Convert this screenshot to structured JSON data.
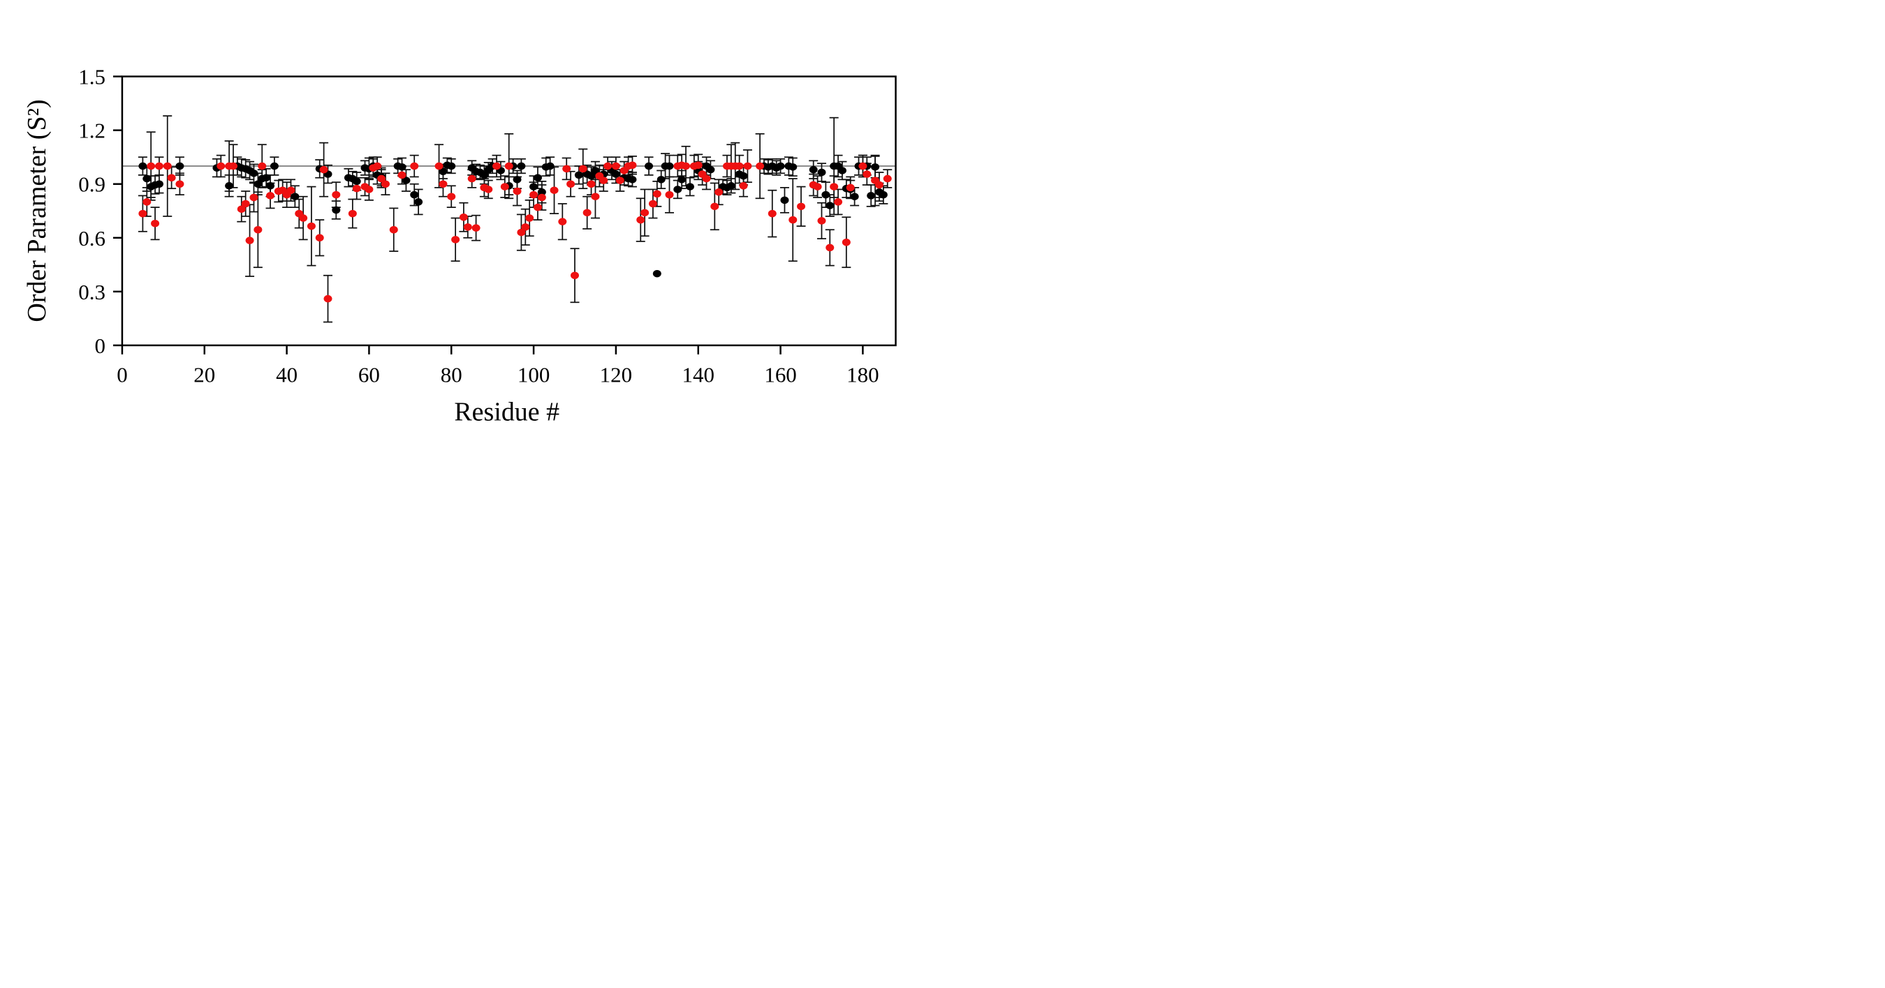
{
  "figure": {
    "background_color": "#ffffff",
    "frame_color": "#000000",
    "reference_line_color": "#8c8c8c",
    "error_bar_color": "#111111"
  },
  "chart_data": {
    "type": "scatter",
    "title": "",
    "xlabel": "Residue #",
    "ylabel": "Order Parameter (S²)",
    "xlim": [
      0,
      188
    ],
    "ylim": [
      0,
      1.5
    ],
    "x_tick_values": [
      0,
      20,
      40,
      60,
      80,
      100,
      120,
      140,
      160,
      180
    ],
    "x_tick_labels": [
      "0",
      "20",
      "40",
      "60",
      "80",
      "100",
      "120",
      "140",
      "160",
      "180"
    ],
    "y_tick_values": [
      0,
      0.3,
      0.6,
      0.9,
      1.2,
      1.5
    ],
    "y_tick_labels": [
      "0",
      "0.3",
      "0.6",
      "0.9",
      "1.2",
      "1.5"
    ],
    "grid": false,
    "legend_position": "none",
    "reference_line_y": 1.0,
    "series": [
      {
        "name": "black-series",
        "color": "#000000",
        "marker": "circle",
        "points": [
          [
            5,
            1.0,
            0.05
          ],
          [
            6,
            0.93,
            0.07
          ],
          [
            7,
            0.885,
            0.06
          ],
          [
            8,
            0.895,
            0.05
          ],
          [
            9,
            0.9,
            0.05
          ],
          [
            14,
            1.0,
            0.05
          ],
          [
            23,
            0.99,
            0.05
          ],
          [
            26,
            0.89,
            0.06
          ],
          [
            28,
            1.0,
            0.05
          ],
          [
            29,
            0.99,
            0.05
          ],
          [
            30,
            0.985,
            0.05
          ],
          [
            31,
            0.975,
            0.05
          ],
          [
            32,
            0.96,
            0.05
          ],
          [
            33,
            0.9,
            0.06
          ],
          [
            34,
            0.93,
            0.05
          ],
          [
            35,
            0.935,
            0.05
          ],
          [
            36,
            0.89,
            0.06
          ],
          [
            37,
            1.0,
            0.05
          ],
          [
            42,
            0.83,
            0.06
          ],
          [
            48,
            0.985,
            0.05
          ],
          [
            50,
            0.955,
            0.05
          ],
          [
            52,
            0.755,
            0.05
          ],
          [
            55,
            0.935,
            0.05
          ],
          [
            56,
            0.93,
            0.04
          ],
          [
            57,
            0.915,
            0.05
          ],
          [
            59,
            0.99,
            0.04
          ],
          [
            60,
            0.985,
            0.06
          ],
          [
            61,
            1.0,
            0.05
          ],
          [
            62,
            0.95,
            0.05
          ],
          [
            63,
            0.94,
            0.05
          ],
          [
            67,
            1.0,
            0.04
          ],
          [
            68,
            0.995,
            0.05
          ],
          [
            69,
            0.92,
            0.06
          ],
          [
            71,
            0.84,
            0.06
          ],
          [
            72,
            0.8,
            0.07
          ],
          [
            78,
            0.97,
            0.04
          ],
          [
            79,
            1.005,
            0.04
          ],
          [
            80,
            1.0,
            0.04
          ],
          [
            85,
            0.99,
            0.04
          ],
          [
            86,
            0.97,
            0.04
          ],
          [
            87,
            0.965,
            0.04
          ],
          [
            88,
            0.95,
            0.05
          ],
          [
            89,
            0.98,
            0.04
          ],
          [
            90,
            1.0,
            0.04
          ],
          [
            92,
            0.975,
            0.05
          ],
          [
            94,
            0.89,
            0.05
          ],
          [
            95,
            1.0,
            0.04
          ],
          [
            96,
            0.925,
            0.05
          ],
          [
            97,
            1.0,
            0.04
          ],
          [
            100,
            0.885,
            0.06
          ],
          [
            101,
            0.935,
            0.06
          ],
          [
            102,
            0.855,
            0.06
          ],
          [
            103,
            0.995,
            0.05
          ],
          [
            104,
            1.0,
            0.05
          ],
          [
            111,
            0.95,
            0.05
          ],
          [
            113,
            0.955,
            0.05
          ],
          [
            114,
            0.945,
            0.05
          ],
          [
            115,
            0.975,
            0.05
          ],
          [
            117,
            0.955,
            0.05
          ],
          [
            119,
            0.975,
            0.05
          ],
          [
            120,
            0.955,
            0.05
          ],
          [
            122,
            0.935,
            0.04
          ],
          [
            123,
            0.93,
            0.04
          ],
          [
            124,
            0.925,
            0.04
          ],
          [
            128,
            1.0,
            0.05
          ],
          [
            130,
            0.4,
            null
          ],
          [
            131,
            0.925,
            0.05
          ],
          [
            132,
            1.0,
            0.07
          ],
          [
            133,
            1.0,
            0.06
          ],
          [
            135,
            0.87,
            0.05
          ],
          [
            136,
            0.925,
            0.05
          ],
          [
            138,
            0.885,
            0.05
          ],
          [
            140,
            0.975,
            0.05
          ],
          [
            142,
            1.0,
            0.05
          ],
          [
            143,
            0.98,
            0.05
          ],
          [
            146,
            0.885,
            0.04
          ],
          [
            147,
            0.88,
            0.04
          ],
          [
            148,
            0.89,
            0.04
          ],
          [
            150,
            0.955,
            0.05
          ],
          [
            151,
            0.945,
            0.05
          ],
          [
            156,
            1.0,
            0.04
          ],
          [
            157,
            0.995,
            0.04
          ],
          [
            158,
            1.0,
            0.04
          ],
          [
            159,
            0.99,
            0.04
          ],
          [
            160,
            1.0,
            0.04
          ],
          [
            161,
            0.81,
            0.07
          ],
          [
            162,
            1.0,
            0.05
          ],
          [
            163,
            0.995,
            0.05
          ],
          [
            168,
            0.98,
            0.05
          ],
          [
            170,
            0.965,
            0.05
          ],
          [
            171,
            0.84,
            0.07
          ],
          [
            172,
            0.78,
            0.06
          ],
          [
            173,
            1.0,
            0.27
          ],
          [
            174,
            1.0,
            0.06
          ],
          [
            175,
            0.975,
            0.05
          ],
          [
            176,
            0.875,
            0.05
          ],
          [
            177,
            0.87,
            0.05
          ],
          [
            178,
            0.83,
            0.05
          ],
          [
            179,
            1.0,
            0.05
          ],
          [
            180,
            1.0,
            0.06
          ],
          [
            181,
            1.0,
            0.05
          ],
          [
            182,
            0.835,
            0.06
          ],
          [
            183,
            0.995,
            0.06
          ],
          [
            184,
            0.855,
            0.05
          ],
          [
            185,
            0.84,
            0.05
          ]
        ]
      },
      {
        "name": "red-series",
        "color": "#ee1111",
        "marker": "circle",
        "points": [
          [
            5,
            0.735,
            0.1
          ],
          [
            6,
            0.8,
            0.08
          ],
          [
            7,
            1.0,
            0.19
          ],
          [
            8,
            0.68,
            0.09
          ],
          [
            9,
            1.0,
            0.05
          ],
          [
            11,
            1.0,
            0.28
          ],
          [
            12,
            0.935,
            0.06
          ],
          [
            14,
            0.9,
            0.06
          ],
          [
            24,
            1.0,
            0.06
          ],
          [
            26,
            1.0,
            0.14
          ],
          [
            27,
            1.0,
            0.12
          ],
          [
            29,
            0.76,
            0.07
          ],
          [
            30,
            0.79,
            0.07
          ],
          [
            31,
            0.585,
            0.2
          ],
          [
            32,
            0.825,
            0.08
          ],
          [
            33,
            0.645,
            0.21
          ],
          [
            34,
            1.0,
            0.12
          ],
          [
            36,
            0.835,
            0.07
          ],
          [
            38,
            0.86,
            0.06
          ],
          [
            39,
            0.865,
            0.06
          ],
          [
            40,
            0.84,
            0.07
          ],
          [
            41,
            0.865,
            0.06
          ],
          [
            43,
            0.735,
            0.08
          ],
          [
            44,
            0.71,
            0.12
          ],
          [
            46,
            0.665,
            0.22
          ],
          [
            48,
            0.6,
            0.1
          ],
          [
            49,
            0.98,
            0.15
          ],
          [
            50,
            0.26,
            0.13
          ],
          [
            52,
            0.84,
            0.07
          ],
          [
            56,
            0.735,
            0.08
          ],
          [
            57,
            0.875,
            0.06
          ],
          [
            59,
            0.885,
            0.05
          ],
          [
            60,
            0.87,
            0.06
          ],
          [
            61,
            0.99,
            0.05
          ],
          [
            62,
            1.0,
            0.05
          ],
          [
            63,
            0.93,
            0.05
          ],
          [
            64,
            0.9,
            0.06
          ],
          [
            66,
            0.645,
            0.12
          ],
          [
            68,
            0.95,
            0.05
          ],
          [
            71,
            1.0,
            0.06
          ],
          [
            77,
            1.0,
            0.12
          ],
          [
            78,
            0.9,
            0.07
          ],
          [
            80,
            0.83,
            0.06
          ],
          [
            81,
            0.59,
            0.12
          ],
          [
            83,
            0.715,
            0.08
          ],
          [
            84,
            0.66,
            0.06
          ],
          [
            85,
            0.93,
            0.05
          ],
          [
            86,
            0.655,
            0.07
          ],
          [
            88,
            0.88,
            0.05
          ],
          [
            89,
            0.87,
            0.05
          ],
          [
            91,
            1.0,
            0.06
          ],
          [
            93,
            0.885,
            0.06
          ],
          [
            94,
            1.0,
            0.18
          ],
          [
            96,
            0.86,
            0.08
          ],
          [
            97,
            0.63,
            0.1
          ],
          [
            98,
            0.66,
            0.1
          ],
          [
            99,
            0.71,
            0.1
          ],
          [
            100,
            0.84,
            0.07
          ],
          [
            101,
            0.77,
            0.07
          ],
          [
            102,
            0.825,
            0.07
          ],
          [
            105,
            0.865,
            0.13
          ],
          [
            107,
            0.69,
            0.1
          ],
          [
            108,
            0.985,
            0.06
          ],
          [
            109,
            0.9,
            0.07
          ],
          [
            110,
            0.39,
            0.15
          ],
          [
            112,
            0.985,
            0.11
          ],
          [
            113,
            0.74,
            0.09
          ],
          [
            114,
            0.9,
            0.06
          ],
          [
            115,
            0.83,
            0.12
          ],
          [
            116,
            0.945,
            0.06
          ],
          [
            117,
            0.92,
            0.06
          ],
          [
            118,
            1.0,
            0.05
          ],
          [
            120,
            1.0,
            0.05
          ],
          [
            121,
            0.92,
            0.06
          ],
          [
            122,
            0.975,
            0.05
          ],
          [
            123,
            1.0,
            0.05
          ],
          [
            124,
            1.005,
            0.05
          ],
          [
            126,
            0.7,
            0.12
          ],
          [
            127,
            0.74,
            0.13
          ],
          [
            129,
            0.79,
            0.08
          ],
          [
            130,
            0.845,
            0.07
          ],
          [
            133,
            0.84,
            0.1
          ],
          [
            135,
            1.0,
            0.06
          ],
          [
            136,
            1.005,
            0.06
          ],
          [
            137,
            1.0,
            0.11
          ],
          [
            139,
            1.0,
            0.06
          ],
          [
            140,
            1.005,
            0.06
          ],
          [
            141,
            0.955,
            0.06
          ],
          [
            142,
            0.93,
            0.06
          ],
          [
            144,
            0.775,
            0.13
          ],
          [
            145,
            0.855,
            0.07
          ],
          [
            147,
            1.0,
            0.06
          ],
          [
            148,
            1.0,
            0.12
          ],
          [
            149,
            1.0,
            0.13
          ],
          [
            150,
            1.0,
            0.06
          ],
          [
            151,
            0.89,
            0.06
          ],
          [
            152,
            1.0,
            0.09
          ],
          [
            155,
            1.0,
            0.18
          ],
          [
            158,
            0.735,
            0.13
          ],
          [
            163,
            0.7,
            0.23
          ],
          [
            165,
            0.775,
            0.11
          ],
          [
            168,
            0.895,
            0.06
          ],
          [
            169,
            0.885,
            0.06
          ],
          [
            170,
            0.695,
            0.1
          ],
          [
            172,
            0.545,
            0.1
          ],
          [
            173,
            0.885,
            0.06
          ],
          [
            174,
            0.8,
            0.07
          ],
          [
            176,
            0.575,
            0.14
          ],
          [
            177,
            0.88,
            0.06
          ],
          [
            180,
            1.0,
            0.06
          ],
          [
            181,
            0.955,
            0.06
          ],
          [
            183,
            0.92,
            0.14
          ],
          [
            184,
            0.895,
            0.07
          ],
          [
            186,
            0.93,
            0.05
          ]
        ]
      }
    ]
  }
}
